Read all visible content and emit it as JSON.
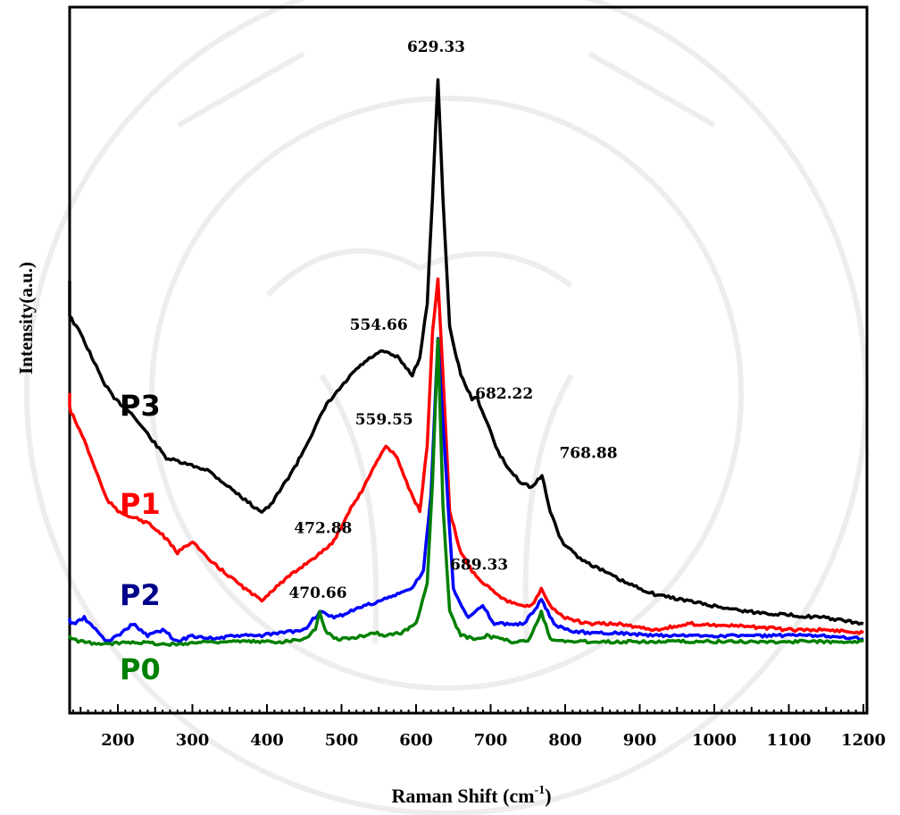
{
  "chart_data": {
    "type": "line",
    "xlabel": "Raman Shift (cm",
    "xlabel_sup": "-1",
    "xlabel_end": ")",
    "ylabel": "Intensity(a.u.)",
    "xlim": [
      125,
      1200
    ],
    "ylim": [
      0,
      100
    ],
    "xticks": [
      200,
      300,
      400,
      500,
      600,
      700,
      800,
      900,
      1000,
      1100,
      1200
    ],
    "grid": false,
    "series": [
      {
        "name": "P3",
        "color": "#000000",
        "x": [
          125,
          135,
          150,
          165,
          180,
          195,
          215,
          240,
          265,
          290,
          320,
          350,
          380,
          393,
          405,
          420,
          440,
          460,
          480,
          500,
          520,
          540,
          555,
          575,
          595,
          605,
          615,
          622,
          629.33,
          636,
          645,
          660,
          675,
          682.22,
          695,
          710,
          725,
          740,
          755,
          768.88,
          780,
          795,
          820,
          850,
          880,
          920,
          960,
          1000,
          1050,
          1100,
          1150,
          1200
        ],
        "y": [
          66,
          60,
          57,
          53,
          49,
          46,
          44,
          40,
          36,
          35,
          34,
          31,
          28,
          27,
          28,
          31,
          35,
          40,
          45,
          48,
          51,
          53,
          54,
          53,
          50,
          53,
          62,
          80,
          100,
          80,
          58,
          50,
          46,
          46,
          42,
          37,
          34,
          32,
          31,
          33,
          27,
          22,
          19,
          17,
          15,
          13,
          12,
          11,
          10,
          9.5,
          9,
          8
        ]
      },
      {
        "name": "P1",
        "color": "#ff0000",
        "x": [
          125,
          140,
          155,
          170,
          185,
          200,
          220,
          240,
          260,
          280,
          300,
          320,
          340,
          360,
          380,
          393,
          410,
          430,
          450,
          472.88,
          490,
          510,
          530,
          545,
          559.55,
          575,
          590,
          605,
          615,
          622,
          629.33,
          636,
          645,
          660,
          675,
          689.33,
          700,
          720,
          740,
          755,
          768,
          780,
          800,
          830,
          870,
          920,
          970,
          1050,
          1100,
          1150,
          1200
        ],
        "y": [
          47,
          43,
          39,
          34,
          29,
          27,
          26,
          25,
          23,
          20,
          22,
          19,
          17,
          15,
          13,
          12,
          14,
          16,
          18,
          20,
          22,
          27,
          31,
          35,
          38,
          36,
          31,
          27,
          38,
          57,
          66,
          50,
          27,
          20,
          17,
          15,
          14,
          12,
          11,
          11,
          14,
          11,
          9,
          8,
          8,
          7,
          8,
          7.5,
          7,
          7,
          6.5
        ]
      },
      {
        "name": "P2",
        "color": "#0000ff",
        "x": [
          125,
          140,
          155,
          170,
          185,
          200,
          220,
          240,
          260,
          280,
          300,
          330,
          360,
          390,
          420,
          450,
          470.66,
          490,
          510,
          530,
          555,
          575,
          595,
          610,
          620,
          629.33,
          638,
          650,
          670,
          689.33,
          705,
          725,
          745,
          768,
          785,
          800,
          830,
          870,
          920,
          970,
          1050,
          1100,
          1150,
          1200
        ],
        "y": [
          9,
          8,
          9,
          7,
          5,
          6,
          8,
          6,
          7,
          5,
          6,
          5.5,
          6,
          6,
          6.5,
          7,
          10,
          9,
          10,
          11,
          12,
          13,
          14,
          17,
          30,
          56,
          38,
          14,
          9,
          11,
          8,
          8,
          8,
          12,
          8,
          7,
          6.5,
          6.5,
          6,
          6,
          6,
          6,
          6,
          5.5
        ]
      },
      {
        "name": "P0",
        "color": "#008000",
        "x": [
          125,
          150,
          180,
          220,
          270,
          320,
          370,
          420,
          450,
          465,
          470.66,
          478,
          490,
          510,
          530,
          545,
          560,
          580,
          600,
          615,
          622,
          629.33,
          636,
          645,
          660,
          680,
          695,
          710,
          730,
          750,
          768,
          780,
          800,
          830,
          870,
          920,
          970,
          1050,
          1100,
          1150,
          1200
        ],
        "y": [
          6,
          5,
          4.5,
          5,
          4.5,
          5,
          5,
          5,
          5.5,
          7,
          10,
          7,
          5.5,
          5.5,
          6,
          6.5,
          6,
          6.5,
          8,
          15,
          32,
          56,
          28,
          10,
          6,
          5.5,
          6,
          5.5,
          5,
          5,
          10,
          5.5,
          5,
          5,
          5,
          5,
          5,
          5,
          5,
          5,
          5
        ]
      }
    ],
    "annotations": [
      {
        "text": "629.33",
        "x": 629.33,
        "y": 100,
        "color": "#000000"
      },
      {
        "text": "554.66",
        "x": 554.66,
        "y": 54,
        "color": "#000000"
      },
      {
        "text": "682.22",
        "x": 682.22,
        "y": 46,
        "color": "#000000"
      },
      {
        "text": "768.88",
        "x": 768.88,
        "y": 33,
        "color": "#000000"
      },
      {
        "text": "559.55",
        "x": 559.55,
        "y": 38,
        "color": "#000000"
      },
      {
        "text": "472.88",
        "x": 472.88,
        "y": 20,
        "color": "#000000"
      },
      {
        "text": "689.33",
        "x": 689.33,
        "y": 15,
        "color": "#000000"
      },
      {
        "text": "470.66",
        "x": 470.66,
        "y": 10,
        "color": "#000000"
      }
    ],
    "series_labels": [
      {
        "text": "P3",
        "color": "#000000"
      },
      {
        "text": "P1",
        "color": "#ff0000"
      },
      {
        "text": "P2",
        "color": "#00008b"
      },
      {
        "text": "P0",
        "color": "#008000"
      }
    ]
  }
}
